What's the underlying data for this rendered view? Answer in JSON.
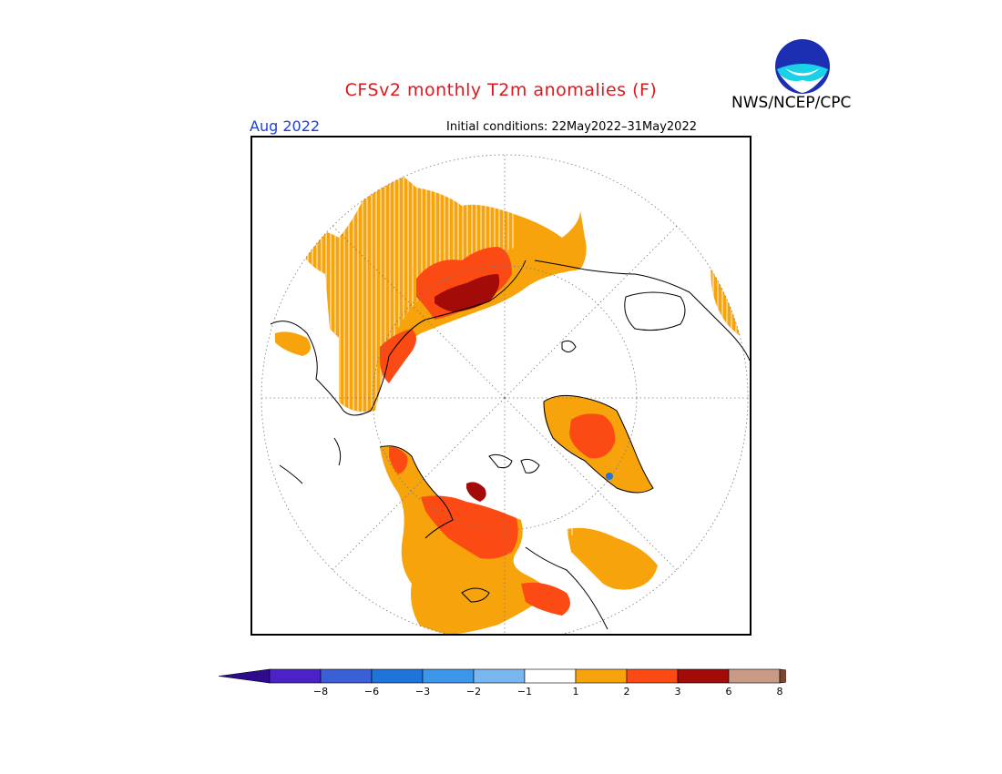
{
  "header": {
    "title": "CFSv2 monthly T2m anomalies (F)",
    "agency": "NWS/NCEP/CPC",
    "logo_text": "NOAA",
    "valid_month": "Aug 2022",
    "initial_conditions": "Initial conditions: 22May2022–31May2022"
  },
  "colors": {
    "title": "#e0161b",
    "month": "#1e3fd8"
  },
  "colorbar": {
    "tick_labels": [
      "−8",
      "−6",
      "−3",
      "−2",
      "−1",
      "1",
      "2",
      "3",
      "6",
      "8"
    ],
    "bins": [
      {
        "color": "#4a22c8"
      },
      {
        "color": "#3a5fd6"
      },
      {
        "color": "#1f74d9"
      },
      {
        "color": "#3c96ea"
      },
      {
        "color": "#7ab6ef"
      },
      {
        "color": "#ffffff"
      },
      {
        "color": "#f7a30b"
      },
      {
        "color": "#fb4a14"
      },
      {
        "color": "#a30b08"
      },
      {
        "color": "#c99b86"
      }
    ],
    "low_extend_color": "#2d0b8c",
    "high_extend_color": "#7a4533"
  },
  "map": {
    "projection": "polar-stereographic-north",
    "shading_legend": {
      "light_orange": "#f7a30b",
      "orange_red": "#fb4a14",
      "dark_red": "#a30b08",
      "blue": "#1f74d9"
    }
  }
}
